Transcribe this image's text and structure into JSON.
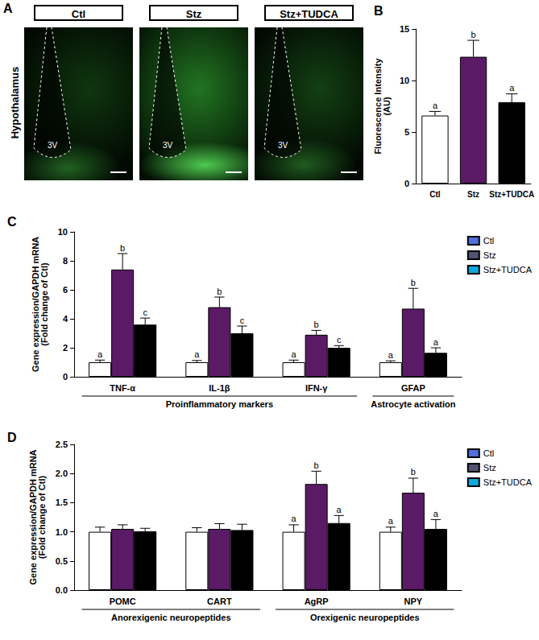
{
  "image_panel": {
    "title": "A",
    "row_label": "Hypothalamus",
    "columns": [
      "Ctl",
      "Stz",
      "Stz+TUDCA"
    ],
    "region_label": "3V"
  },
  "chart_data": [
    {
      "type": "bar",
      "title": "B",
      "ylabel": "Fluorescence Intensity\n(AU)",
      "categories": [
        "Ctl",
        "Stz",
        "Stz+TUDCA"
      ],
      "values": [
        6.6,
        12.3,
        7.9
      ],
      "errors": [
        0.4,
        1.6,
        0.8
      ],
      "annotations": [
        "a",
        "b",
        "a"
      ],
      "colors": [
        "#ffffff",
        "#5b1a66",
        "#000000"
      ],
      "ylim": [
        0,
        15
      ],
      "yticks": [
        0,
        5,
        10,
        15
      ],
      "grid": false
    },
    {
      "type": "bar",
      "title": "C",
      "ylabel": "Gene expression/GAPDH mRNA\n(Fold change of Ctl)",
      "categories": [
        "TNF-α",
        "IL-1β",
        "IFN-γ",
        "GFAP"
      ],
      "category_groups": [
        {
          "label": "Proinflammatory markers",
          "categories": [
            "TNF-α",
            "IL-1β",
            "IFN-γ"
          ]
        },
        {
          "label": "Astrocyte activation",
          "categories": [
            "GFAP"
          ]
        }
      ],
      "series": [
        {
          "name": "Ctl",
          "color": "#ffffff",
          "values": [
            1,
            1,
            1,
            1
          ],
          "errors": [
            0.15,
            0.12,
            0.15,
            0.1
          ],
          "annotations": [
            "a",
            "a",
            "a",
            "a"
          ]
        },
        {
          "name": "Stz",
          "color": "#5b1a66",
          "values": [
            7.4,
            4.8,
            2.9,
            4.7
          ],
          "errors": [
            1.1,
            0.7,
            0.3,
            1.4
          ],
          "annotations": [
            "b",
            "b",
            "b",
            "b"
          ]
        },
        {
          "name": "Stz+TUDCA",
          "color": "#000000",
          "values": [
            3.6,
            3.0,
            2.0,
            1.65
          ],
          "errors": [
            0.45,
            0.5,
            0.15,
            0.35
          ],
          "annotations": [
            "c",
            "c",
            "c",
            "a"
          ]
        }
      ],
      "ylim": [
        0,
        10
      ],
      "yticks": [
        0,
        2,
        4,
        6,
        8,
        10
      ],
      "grid": false,
      "legend": "top-right"
    },
    {
      "type": "bar",
      "title": "D",
      "ylabel": "Gene expression/GAPDH mRNA\n(Fold change of Ctl)",
      "categories": [
        "POMC",
        "CART",
        "AgRP",
        "NPY"
      ],
      "category_groups": [
        {
          "label": "Anorexigenic neuropeptides",
          "categories": [
            "POMC",
            "CART"
          ]
        },
        {
          "label": "Orexigenic neuropeptides",
          "categories": [
            "AgRP",
            "NPY"
          ]
        }
      ],
      "series": [
        {
          "name": "Ctl",
          "color": "#ffffff",
          "values": [
            1,
            1,
            1,
            1
          ],
          "errors": [
            0.08,
            0.07,
            0.12,
            0.08
          ],
          "annotations": [
            null,
            null,
            "a",
            "a"
          ]
        },
        {
          "name": "Stz",
          "color": "#5b1a66",
          "values": [
            1.05,
            1.05,
            1.82,
            1.67
          ],
          "errors": [
            0.07,
            0.09,
            0.22,
            0.25
          ],
          "annotations": [
            null,
            null,
            "b",
            "b"
          ]
        },
        {
          "name": "Stz+TUDCA",
          "color": "#000000",
          "values": [
            1.01,
            1.03,
            1.15,
            1.05
          ],
          "errors": [
            0.05,
            0.1,
            0.13,
            0.16
          ],
          "annotations": [
            null,
            null,
            "a",
            "a"
          ]
        }
      ],
      "ylim": [
        0,
        2.5
      ],
      "yticks": [
        {
          "value": 0,
          "label": "0.0"
        },
        0.5,
        {
          "value": 1,
          "label": "1.0"
        },
        1.5,
        {
          "value": 2,
          "label": "2.0"
        },
        2.5
      ],
      "grid": false,
      "legend": "top-right"
    }
  ]
}
